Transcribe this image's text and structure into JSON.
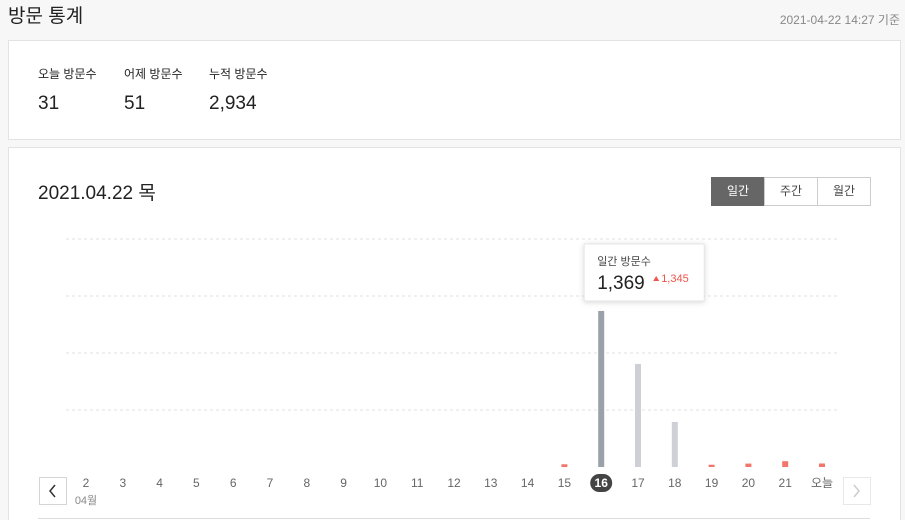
{
  "header": {
    "title": "방문 통계",
    "timestamp": "2021-04-22 14:27 기준"
  },
  "stats": [
    {
      "label": "오늘 방문수",
      "value": "31"
    },
    {
      "label": "어제 방문수",
      "value": "51"
    },
    {
      "label": "누적 방문수",
      "value": "2,934"
    }
  ],
  "chart_data": {
    "type": "bar",
    "title": "2021.04.22 목",
    "tabs": [
      "일간",
      "주간",
      "월간"
    ],
    "active_tab": 0,
    "categories": [
      "2",
      "3",
      "4",
      "5",
      "6",
      "7",
      "8",
      "9",
      "10",
      "11",
      "12",
      "13",
      "14",
      "15",
      "16",
      "17",
      "18",
      "19",
      "20",
      "21",
      "오늘"
    ],
    "month_label": "04월",
    "selected": 14,
    "values": [
      0,
      0,
      0,
      0,
      0,
      0,
      0,
      0,
      0,
      0,
      0,
      0,
      0,
      24,
      1369,
      904,
      395,
      20,
      30,
      51,
      31
    ],
    "colors": [
      "#f2766b",
      "#f2766b",
      "#f2766b",
      "#f2766b",
      "#f2766b",
      "#f2766b",
      "#f2766b",
      "#f2766b",
      "#f2766b",
      "#f2766b",
      "#f2766b",
      "#f2766b",
      "#f2766b",
      "#f2766b",
      "#9aa1a9",
      "#cdd1d6",
      "#cdd1d6",
      "#f2766b",
      "#f2766b",
      "#f2766b",
      "#f2766b"
    ],
    "ylim": [
      0,
      2000
    ],
    "yticks": [
      500,
      1000,
      1500,
      2000
    ],
    "grid": true,
    "tooltip": {
      "title": "일간 방문수",
      "value_label": "1,369",
      "change": "1,345"
    }
  }
}
